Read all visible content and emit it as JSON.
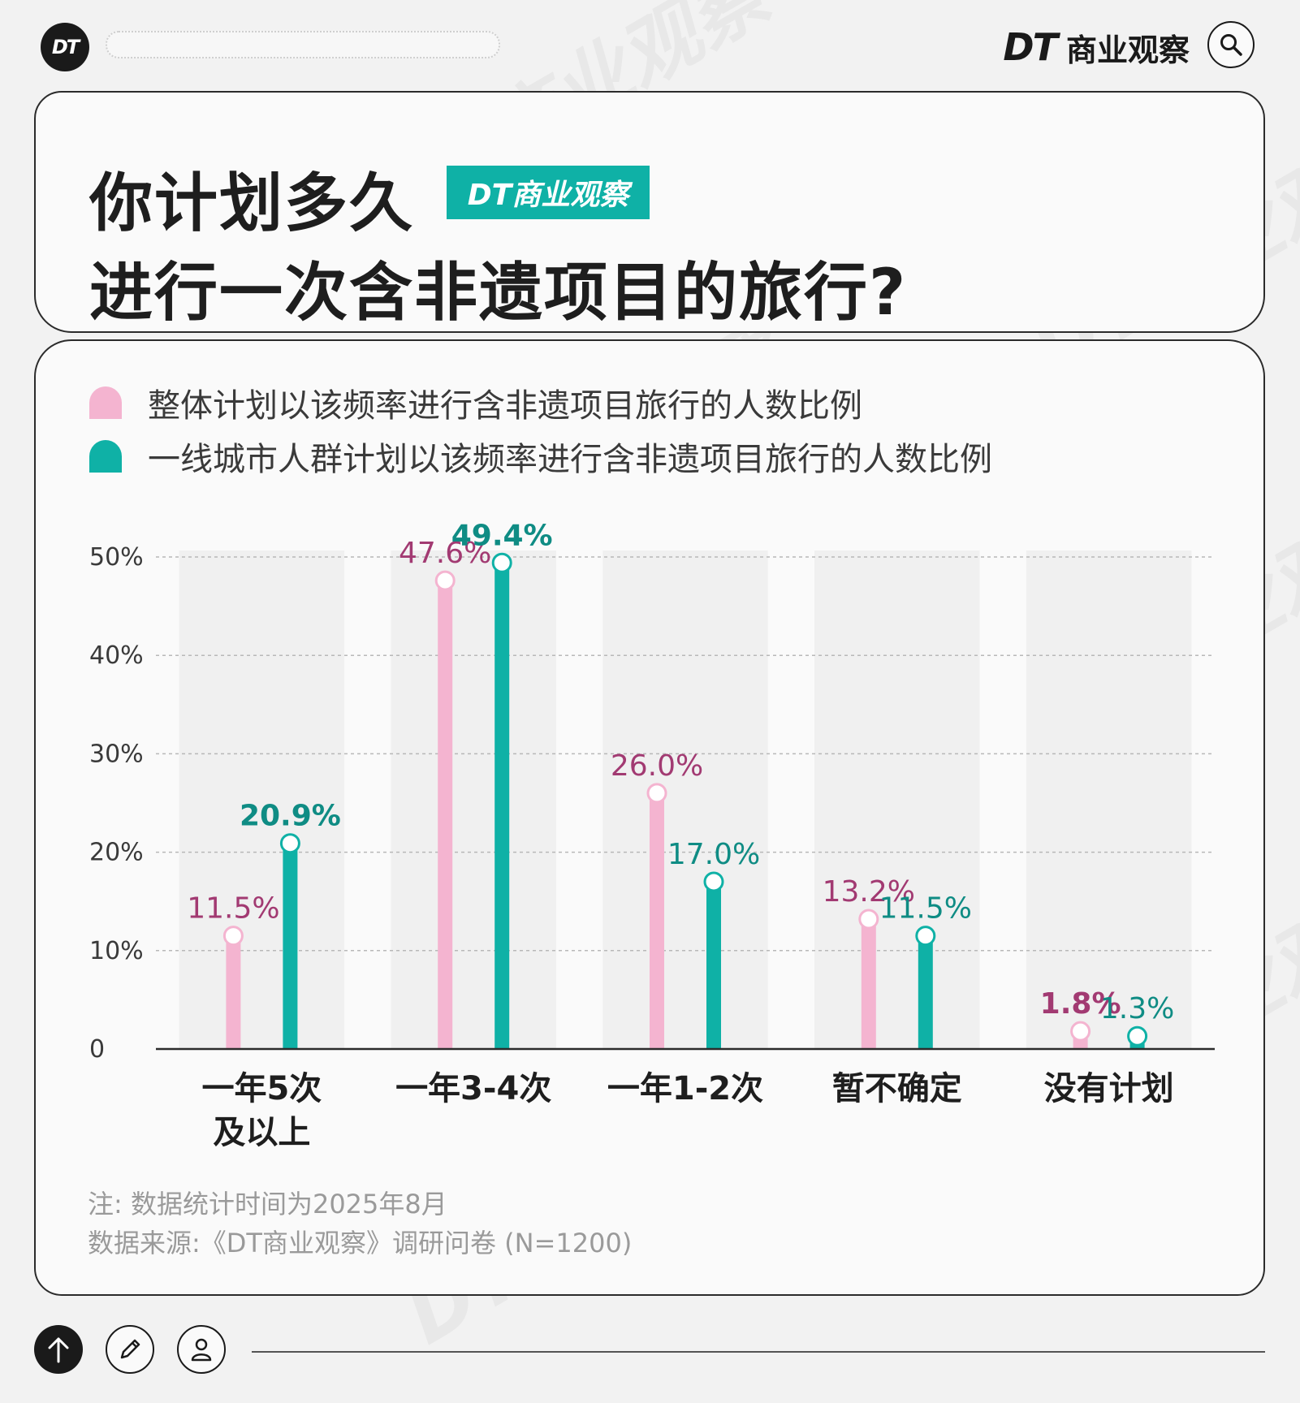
{
  "header": {
    "logo_text": "DT",
    "brand_dt": "DT",
    "brand_name": "商业观察"
  },
  "title": {
    "line1": "你计划多久",
    "line2": "进行一次含非遗项目的旅行?",
    "badge": "DT商业观察"
  },
  "legend": [
    {
      "label": "整体计划以该频率进行含非遗项目旅行的人数比例",
      "color": "#f4b4d0"
    },
    {
      "label": "一线城市人群计划以该频率进行含非遗项目旅行的人数比例",
      "color": "#0fb1a6"
    }
  ],
  "chart_data": {
    "type": "bar",
    "categories": [
      [
        "一年5次",
        "及以上"
      ],
      [
        "一年3-4次"
      ],
      [
        "一年1-2次"
      ],
      [
        "暂不确定"
      ],
      [
        "没有计划"
      ]
    ],
    "series": [
      {
        "name": "整体计划以该频率进行含非遗项目旅行的人数比例",
        "values": [
          11.5,
          47.6,
          26.0,
          13.2,
          1.8
        ],
        "labels": [
          "11.5%",
          "47.6%",
          "26.0%",
          "13.2%",
          "1.8%"
        ],
        "bold": [
          false,
          false,
          false,
          false,
          true
        ],
        "color": "#f4b4d0",
        "label_color": "#a23a72"
      },
      {
        "name": "一线城市人群计划以该频率进行含非遗项目旅行的人数比例",
        "values": [
          20.9,
          49.4,
          17.0,
          11.5,
          1.3
        ],
        "labels": [
          "20.9%",
          "49.4%",
          "17.0%",
          "11.5%",
          "1.3%"
        ],
        "bold": [
          true,
          true,
          false,
          false,
          false
        ],
        "color": "#0fb1a6",
        "label_color": "#0f8c84"
      }
    ],
    "yticks": [
      "0",
      "10%",
      "20%",
      "30%",
      "40%",
      "50%"
    ],
    "ylim": [
      0,
      50
    ],
    "grid": true
  },
  "notes": {
    "note": "注: 数据统计时间为2025年8月",
    "source": "数据来源:《DT商业观察》调研问卷 (N=1200)"
  },
  "watermark_text": "DT商业观察",
  "icons": {
    "top": [
      "dt-logo-icon",
      "search-icon"
    ],
    "bottom": [
      "arrow-up-icon",
      "pencil-icon",
      "user-icon"
    ]
  }
}
